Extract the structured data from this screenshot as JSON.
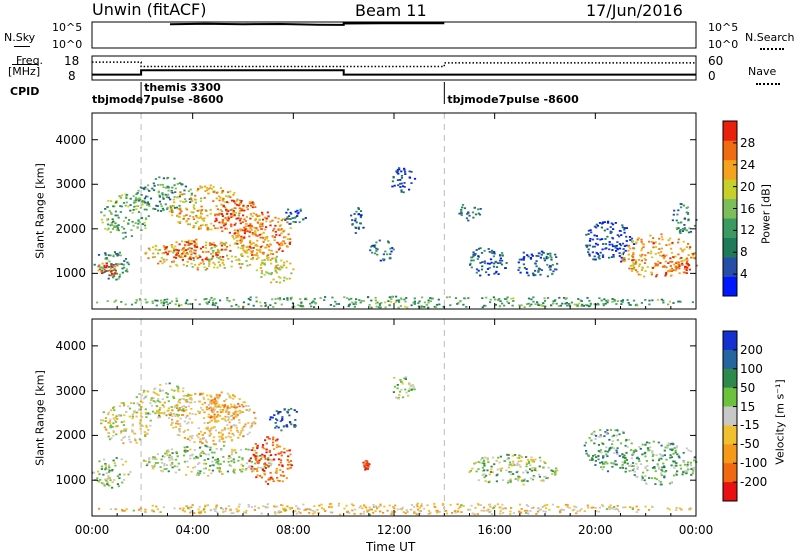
{
  "header": {
    "station": "Unwin (fitACF)",
    "beam": "Beam 11",
    "date": "17/Jun/2016"
  },
  "nsky_panel": {
    "left_label": "N.Sky",
    "left_ticks": [
      "10^5",
      "10^0"
    ],
    "right_ticks": [
      "10^5",
      "10^0"
    ],
    "right_label": "N.Search",
    "nsky_series": [
      {
        "t": 3.1,
        "level": 0.95
      },
      {
        "t": 4.5,
        "level": 0.97
      },
      {
        "t": 6.0,
        "level": 0.95
      },
      {
        "t": 7.5,
        "level": 0.96
      },
      {
        "t": 9.0,
        "level": 0.93
      },
      {
        "t": 10.0,
        "level": 0.92
      },
      {
        "t": 10.0,
        "level": 0.98
      },
      {
        "t": 12.0,
        "level": 0.99
      },
      {
        "t": 14.0,
        "level": 0.99
      }
    ]
  },
  "freq_panel": {
    "left_label_1": "Freq.",
    "left_label_2": "[MHz]",
    "left_ticks": [
      "18",
      "8"
    ],
    "right_ticks": [
      "60",
      "0"
    ],
    "right_label": "Nave",
    "freq_series": [
      {
        "t": 0.0,
        "mhz": 10.0
      },
      {
        "t": 1.95,
        "mhz": 10.0
      },
      {
        "t": 1.95,
        "mhz": 12.0
      },
      {
        "t": 10.0,
        "mhz": 12.0
      },
      {
        "t": 10.0,
        "mhz": 10.0
      },
      {
        "t": 24.0,
        "mhz": 10.0
      }
    ],
    "nave_series": [
      {
        "t": 0.0,
        "nave": 46
      },
      {
        "t": 1.95,
        "nave": 46
      },
      {
        "t": 1.95,
        "nave": 34
      },
      {
        "t": 14.0,
        "nave": 34
      },
      {
        "t": 14.0,
        "nave": 44
      },
      {
        "t": 24.0,
        "nave": 44
      }
    ]
  },
  "cpid": {
    "label": "CPID",
    "entries": [
      {
        "t": 0.0,
        "text": "tbjmode7pulse -8600",
        "row": 1
      },
      {
        "t": 1.95,
        "text": "themis 3300",
        "row": 0
      },
      {
        "t": 14.0,
        "text": "tbjmode7pulse -8600",
        "row": 1
      }
    ]
  },
  "chart_data": [
    {
      "type": "heatmap",
      "name": "power",
      "ylabel": "Slant Range [km]",
      "yticks": [
        1000,
        2000,
        3000,
        4000
      ],
      "ylim": [
        200,
        4600
      ],
      "xlim": [
        0,
        24
      ],
      "colorbar": {
        "label": "Power [dB]",
        "range": [
          0,
          32
        ],
        "ticks": [
          4,
          8,
          12,
          16,
          20,
          24,
          28
        ],
        "colors": [
          "#0018ff",
          "#264da8",
          "#1f7a5a",
          "#3a9a60",
          "#7cbf5a",
          "#c7cf2a",
          "#f5a31c",
          "#f06b12",
          "#e8200c"
        ]
      },
      "regions": [
        {
          "t0": 0.0,
          "t1": 1.5,
          "r0": 850,
          "r1": 1550,
          "level": 0.35
        },
        {
          "t0": 0.2,
          "t1": 1.0,
          "r0": 950,
          "r1": 1300,
          "level": 0.85
        },
        {
          "t0": 0.3,
          "t1": 2.3,
          "r0": 1800,
          "r1": 2800,
          "level": 0.45
        },
        {
          "t0": 1.7,
          "t1": 4.0,
          "r0": 2400,
          "r1": 3200,
          "level": 0.35
        },
        {
          "t0": 2.0,
          "t1": 7.2,
          "r0": 1100,
          "r1": 1800,
          "level": 0.65
        },
        {
          "t0": 2.8,
          "t1": 5.5,
          "r0": 1300,
          "r1": 1750,
          "level": 0.92
        },
        {
          "t0": 3.0,
          "t1": 6.0,
          "r0": 2000,
          "r1": 3000,
          "level": 0.7
        },
        {
          "t0": 4.8,
          "t1": 6.8,
          "r0": 1800,
          "r1": 2700,
          "level": 0.88
        },
        {
          "t0": 5.5,
          "t1": 8.0,
          "r0": 1400,
          "r1": 2400,
          "level": 0.8
        },
        {
          "t0": 6.5,
          "t1": 8.0,
          "r0": 800,
          "r1": 1400,
          "level": 0.62
        },
        {
          "t0": 7.5,
          "t1": 8.5,
          "r0": 2100,
          "r1": 2500,
          "level": 0.25
        },
        {
          "t0": 10.2,
          "t1": 10.8,
          "r0": 1900,
          "r1": 2500,
          "level": 0.18
        },
        {
          "t0": 11.0,
          "t1": 12.0,
          "r0": 1300,
          "r1": 1800,
          "level": 0.25
        },
        {
          "t0": 11.8,
          "t1": 12.8,
          "r0": 2800,
          "r1": 3400,
          "level": 0.12
        },
        {
          "t0": 14.5,
          "t1": 15.5,
          "r0": 2200,
          "r1": 2600,
          "level": 0.3
        },
        {
          "t0": 14.8,
          "t1": 16.5,
          "r0": 950,
          "r1": 1600,
          "level": 0.22
        },
        {
          "t0": 16.8,
          "t1": 18.5,
          "r0": 900,
          "r1": 1600,
          "level": 0.2
        },
        {
          "t0": 19.5,
          "t1": 21.5,
          "r0": 1200,
          "r1": 2200,
          "level": 0.12
        },
        {
          "t0": 21.0,
          "t1": 24.0,
          "r0": 900,
          "r1": 1900,
          "level": 0.75
        },
        {
          "t0": 22.5,
          "t1": 24.0,
          "r0": 1000,
          "r1": 1400,
          "level": 0.88
        },
        {
          "t0": 23.0,
          "t1": 24.0,
          "r0": 1900,
          "r1": 2600,
          "level": 0.3
        },
        {
          "t0": 0.0,
          "t1": 24.0,
          "r0": 250,
          "r1": 500,
          "level": 0.4
        }
      ]
    },
    {
      "type": "heatmap",
      "name": "velocity",
      "ylabel": "Slant Range [km]",
      "yticks": [
        1000,
        2000,
        3000,
        4000
      ],
      "ylim": [
        200,
        4600
      ],
      "xlim": [
        0,
        24
      ],
      "colorbar": {
        "label": "Velocity [m s⁻¹]",
        "tick_labels": [
          "200",
          "100",
          "50",
          "15",
          "-15",
          "-50",
          "-100",
          "-200"
        ],
        "colors": [
          "#1530d0",
          "#2565a0",
          "#2e8a4a",
          "#6cc23c",
          "#c8c8c8",
          "#f0c030",
          "#f59a18",
          "#f06812",
          "#e81010"
        ]
      },
      "regions": [
        {
          "t0": 0.0,
          "t1": 1.5,
          "r0": 850,
          "r1": 1550,
          "level": 0.45
        },
        {
          "t0": 0.3,
          "t1": 2.3,
          "r0": 1800,
          "r1": 2800,
          "level": 0.55
        },
        {
          "t0": 1.7,
          "t1": 4.0,
          "r0": 2400,
          "r1": 3200,
          "level": 0.5
        },
        {
          "t0": 2.0,
          "t1": 7.2,
          "r0": 1100,
          "r1": 1800,
          "level": 0.45
        },
        {
          "t0": 3.0,
          "t1": 6.5,
          "r0": 1800,
          "r1": 3000,
          "level": 0.62
        },
        {
          "t0": 4.5,
          "t1": 6.0,
          "r0": 2300,
          "r1": 2900,
          "level": 0.72
        },
        {
          "t0": 6.2,
          "t1": 8.0,
          "r0": 900,
          "r1": 2000,
          "level": 0.88
        },
        {
          "t0": 7.0,
          "t1": 8.2,
          "r0": 2100,
          "r1": 2700,
          "level": 0.1
        },
        {
          "t0": 10.7,
          "t1": 11.0,
          "r0": 1250,
          "r1": 1450,
          "level": 0.96
        },
        {
          "t0": 11.8,
          "t1": 12.8,
          "r0": 2800,
          "r1": 3400,
          "level": 0.45
        },
        {
          "t0": 14.8,
          "t1": 18.5,
          "r0": 900,
          "r1": 1600,
          "level": 0.45
        },
        {
          "t0": 19.5,
          "t1": 21.5,
          "r0": 1200,
          "r1": 2200,
          "level": 0.35
        },
        {
          "t0": 21.0,
          "t1": 24.0,
          "r0": 900,
          "r1": 1900,
          "level": 0.38
        },
        {
          "t0": 0.0,
          "t1": 24.0,
          "r0": 250,
          "r1": 500,
          "level": 0.6
        }
      ]
    }
  ],
  "xaxis": {
    "label": "Time UT",
    "ticks": [
      {
        "t": 0,
        "label": "00:00"
      },
      {
        "t": 4,
        "label": "04:00"
      },
      {
        "t": 8,
        "label": "08:00"
      },
      {
        "t": 12,
        "label": "12:00"
      },
      {
        "t": 16,
        "label": "16:00"
      },
      {
        "t": 20,
        "label": "20:00"
      },
      {
        "t": 24,
        "label": "00:00"
      }
    ]
  }
}
